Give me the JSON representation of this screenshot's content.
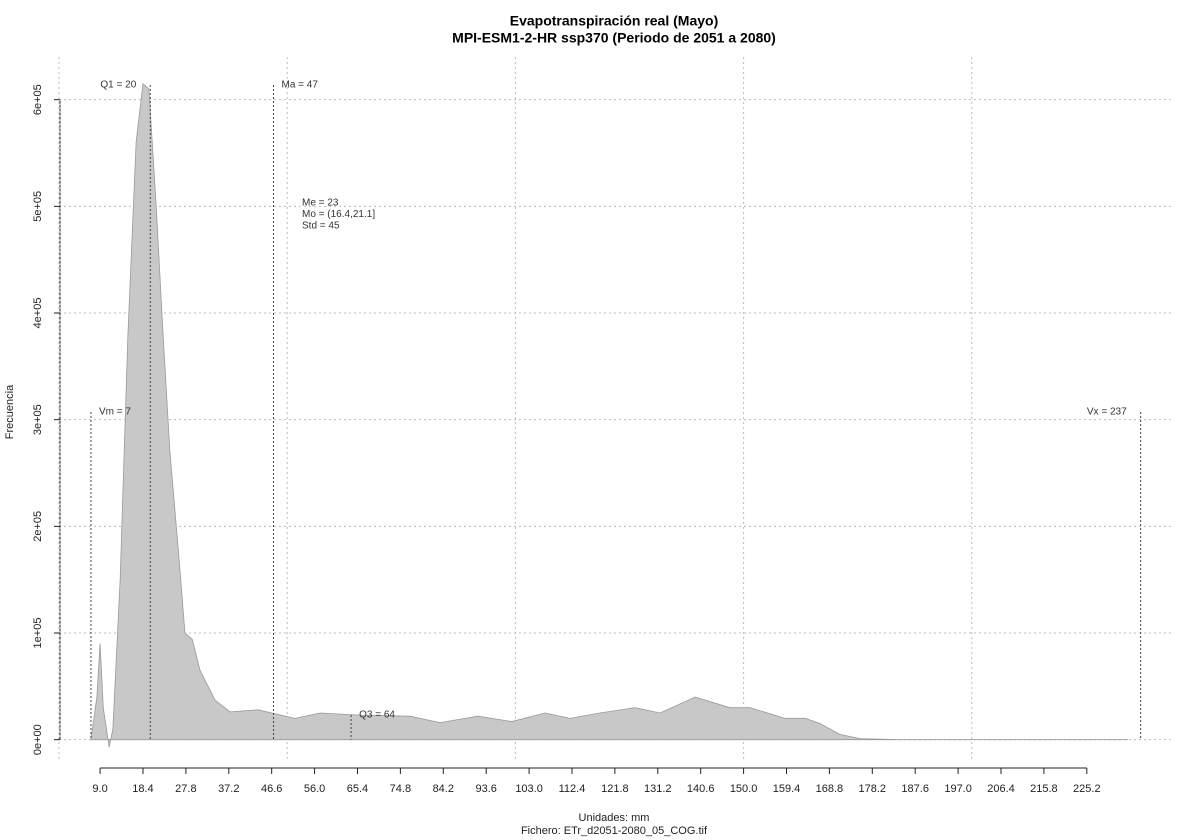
{
  "chart_data": {
    "type": "area",
    "title": "Evapotranspiración real (Mayo)",
    "subtitle": "MPI-ESM1-2-HR ssp370 (Periodo de 2051 a 2080)",
    "x_label": "Unidades: mm",
    "caption": "Fichero: ETr_d2051-2080_05_COG.tif",
    "y_label": "Frecuencia",
    "color": "#c8c8c8",
    "x": [
      7,
      8.3,
      9.0,
      9.7,
      11,
      11.8,
      13.4,
      15.1,
      16.9,
      18.4,
      19.7,
      21.3,
      22.8,
      24.3,
      26.1,
      27.6,
      29.2,
      30.9,
      34.2,
      37.5,
      43.6,
      51.7,
      57.2,
      66.0,
      76.9,
      83.5,
      91.8,
      99.2,
      106.5,
      112.0,
      118.5,
      126.2,
      131.7,
      139.4,
      147.0,
      151.4,
      159.1,
      163.5,
      166.8,
      171.1,
      175.5,
      184.3,
      234.2
    ],
    "values": [
      0,
      40000,
      90000,
      30000,
      -7000,
      10000,
      150000,
      380000,
      560000,
      615000,
      610000,
      500000,
      380000,
      270000,
      180000,
      100000,
      94000,
      65000,
      37000,
      26000,
      28000,
      20000,
      25000,
      23000,
      22000,
      16000,
      22000,
      17000,
      25000,
      20000,
      25000,
      30000,
      25000,
      40000,
      30000,
      30000,
      20000,
      20000,
      15000,
      5000,
      1000,
      0,
      0
    ],
    "xlim": [
      0,
      244
    ],
    "ylim": [
      -20000,
      640000
    ],
    "xticks": [
      {
        "value": 9,
        "label": "9.0"
      },
      18.4,
      27.8,
      37.2,
      46.6,
      {
        "value": 56,
        "label": "56.0"
      },
      65.4,
      74.8,
      84.2,
      93.6,
      {
        "value": 103,
        "label": "103.0"
      },
      112.4,
      121.8,
      131.2,
      140.6,
      {
        "value": 150,
        "label": "150.0"
      },
      159.4,
      168.8,
      178.2,
      187.6,
      {
        "value": 197,
        "label": "197.0"
      },
      206.4,
      215.8,
      225.2
    ],
    "yticks": [
      {
        "value": 0,
        "label": "0e+00"
      },
      {
        "value": 100000,
        "label": "1e+05"
      },
      {
        "value": 200000,
        "label": "2e+05"
      },
      {
        "value": 300000,
        "label": "3e+05"
      },
      {
        "value": 400000,
        "label": "4e+05"
      },
      {
        "value": 500000,
        "label": "5e+05"
      },
      {
        "value": 600000,
        "label": "6e+05"
      }
    ],
    "x_grid": [
      0,
      50,
      100,
      150,
      200
    ],
    "grid": true,
    "markers": [
      {
        "label": "Q1 = 20",
        "value": 20
      },
      {
        "label": "Ma = 47",
        "value": 47
      },
      {
        "label": "Vm = 7",
        "value": 7
      },
      {
        "label": "Vx = 237",
        "value": 237
      },
      {
        "label": "Q3 = 64",
        "value": 64
      }
    ],
    "stats": [
      "Me = 23",
      "Mo = (16.4,21.1]",
      "Std = 45"
    ]
  }
}
